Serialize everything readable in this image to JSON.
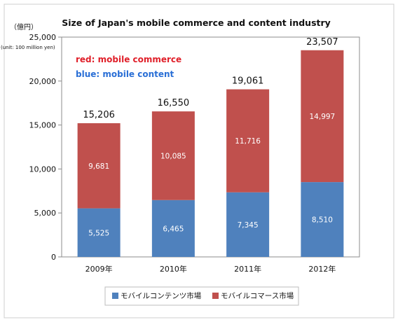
{
  "chart_data": {
    "type": "bar",
    "stacked": true,
    "title": "Size of Japan's mobile commerce and content industry",
    "ylabel": "（億円）",
    "unit_note": "(unit: 100 million yen)",
    "notes": {
      "red": "red: mobile commerce",
      "blue": "blue: mobile content"
    },
    "categories": [
      "2009年",
      "2010年",
      "2011年",
      "2012年"
    ],
    "series": [
      {
        "name": "モバイルコンテンツ市場",
        "color": "#4f81bd",
        "values": [
          5525,
          6465,
          7345,
          8510
        ]
      },
      {
        "name": "モバイルコマース市場",
        "color": "#c0504d",
        "values": [
          9681,
          10085,
          11716,
          14997
        ]
      }
    ],
    "totals": [
      15206,
      16550,
      19061,
      23507
    ],
    "ylim": [
      0,
      25000
    ],
    "yticks": [
      0,
      5000,
      10000,
      15000,
      20000,
      25000
    ],
    "grid": false,
    "legend": "bottom"
  }
}
